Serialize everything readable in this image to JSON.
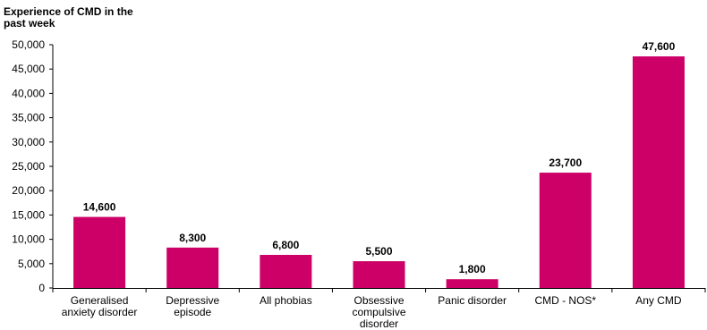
{
  "chart_data": {
    "type": "bar",
    "title": "",
    "xlabel": "",
    "ylabel": "Experience of CMD in the past week",
    "ylim": [
      0,
      50000
    ],
    "yticks": [
      "0",
      "5,000",
      "10,000",
      "15,000",
      "20,000",
      "25,000",
      "30,000",
      "35,000",
      "40,000",
      "45,000",
      "50,000"
    ],
    "grid": false,
    "legend": "none",
    "bar_color": "#cc0066",
    "categories": [
      [
        "Generalised",
        "anxiety disorder"
      ],
      [
        "Depressive",
        "episode"
      ],
      [
        "All phobias"
      ],
      [
        "Obsessive",
        "compulsive",
        "disorder"
      ],
      [
        "Panic disorder"
      ],
      [
        "CMD - NOS*"
      ],
      [
        "Any CMD"
      ]
    ],
    "values": [
      14600,
      8300,
      6800,
      5500,
      1800,
      23700,
      47600
    ],
    "data_labels": [
      "14,600",
      "8,300",
      "6,800",
      "5,500",
      "1,800",
      "23,700",
      "47,600"
    ]
  }
}
